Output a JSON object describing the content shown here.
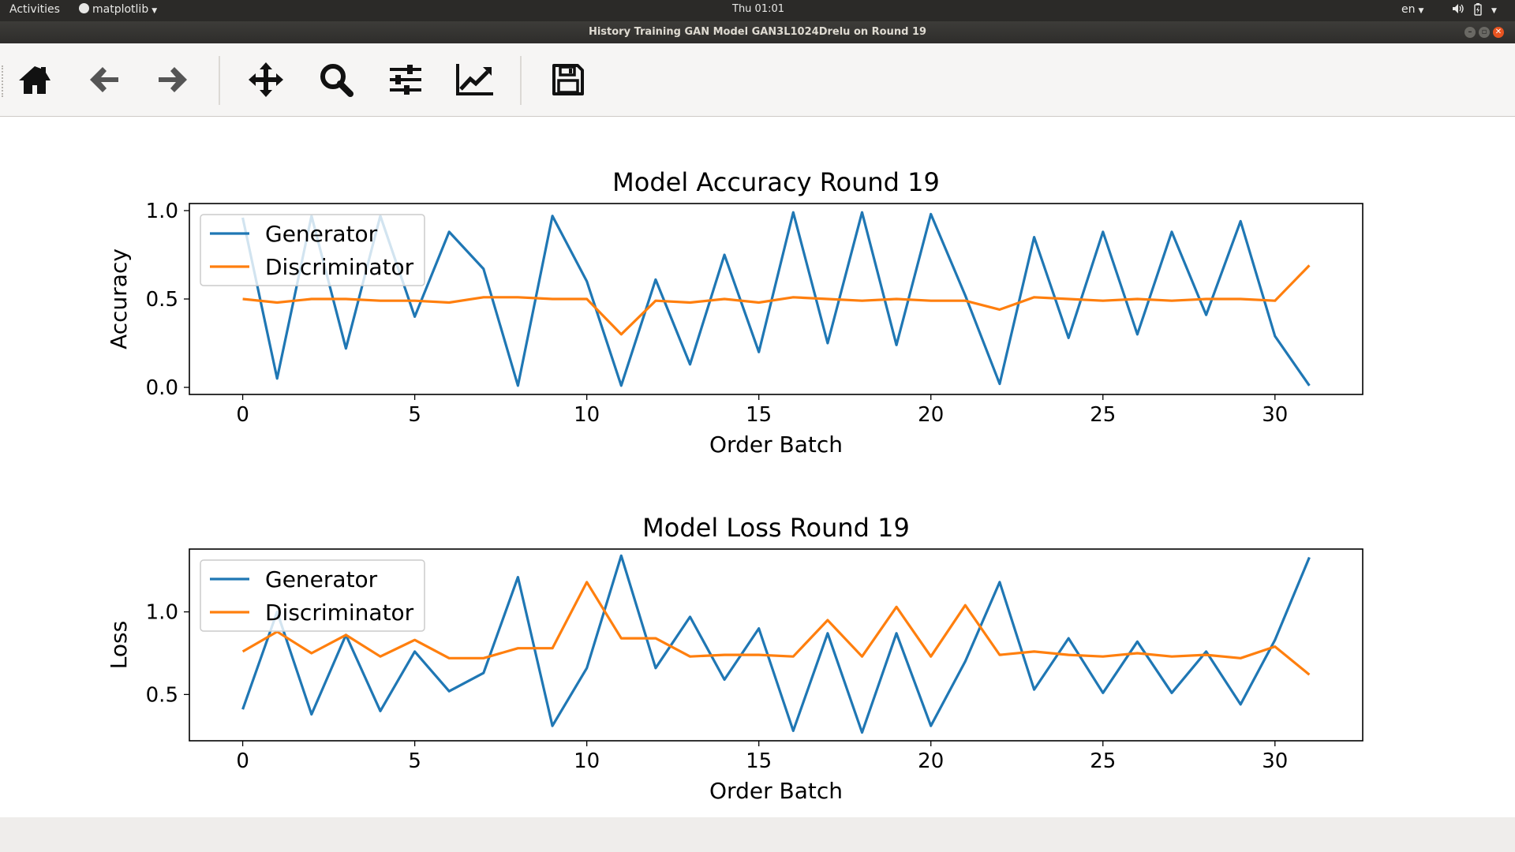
{
  "topbar": {
    "activities": "Activities",
    "app_menu": "matplotlib",
    "clock": "Thu 01:01",
    "lang": "en"
  },
  "window": {
    "title": "History Training GAN Model GAN3L1024Drelu on Round 19"
  },
  "toolbar": {
    "buttons": [
      "home-icon",
      "back-arrow-icon",
      "forward-arrow-icon",
      "pan-icon",
      "zoom-icon",
      "configure-subplots-icon",
      "edit-axis-icon",
      "save-icon"
    ]
  },
  "colors": {
    "generator": "#1f77b4",
    "discriminator": "#ff7f0e"
  },
  "chart_data": [
    {
      "type": "line",
      "title": "Model Accuracy Round 19",
      "xlabel": "Order Batch",
      "ylabel": "Accuracy",
      "xlim": [
        -1.55,
        32.55
      ],
      "ylim": [
        -0.04,
        1.04
      ],
      "xticks": [
        0,
        5,
        10,
        15,
        20,
        25,
        30
      ],
      "yticks": [
        0.0,
        0.5,
        1.0
      ],
      "ytick_labels": [
        "0.0",
        "0.5",
        "1.0"
      ],
      "legend": "upper-left",
      "x": [
        0,
        1,
        2,
        3,
        4,
        5,
        6,
        7,
        8,
        9,
        10,
        11,
        12,
        13,
        14,
        15,
        16,
        17,
        18,
        19,
        20,
        21,
        22,
        23,
        24,
        25,
        26,
        27,
        28,
        29,
        30,
        31
      ],
      "series": [
        {
          "name": "Generator",
          "values": [
            0.96,
            0.05,
            0.97,
            0.22,
            0.97,
            0.4,
            0.88,
            0.67,
            0.01,
            0.97,
            0.6,
            0.01,
            0.61,
            0.13,
            0.75,
            0.2,
            0.99,
            0.25,
            0.99,
            0.24,
            0.98,
            0.52,
            0.02,
            0.85,
            0.28,
            0.88,
            0.3,
            0.88,
            0.41,
            0.94,
            0.29,
            0.01
          ]
        },
        {
          "name": "Discriminator",
          "values": [
            0.5,
            0.48,
            0.5,
            0.5,
            0.49,
            0.49,
            0.48,
            0.51,
            0.51,
            0.5,
            0.5,
            0.3,
            0.49,
            0.48,
            0.5,
            0.48,
            0.51,
            0.5,
            0.49,
            0.5,
            0.49,
            0.49,
            0.44,
            0.51,
            0.5,
            0.49,
            0.5,
            0.49,
            0.5,
            0.5,
            0.49,
            0.69
          ]
        }
      ]
    },
    {
      "type": "line",
      "title": "Model Loss Round 19",
      "xlabel": "Order Batch",
      "ylabel": "Loss",
      "xlim": [
        -1.55,
        32.55
      ],
      "ylim": [
        0.22,
        1.38
      ],
      "xticks": [
        0,
        5,
        10,
        15,
        20,
        25,
        30
      ],
      "yticks": [
        0.5,
        1.0
      ],
      "ytick_labels": [
        "0.5",
        "1.0"
      ],
      "legend": "upper-left",
      "x": [
        0,
        1,
        2,
        3,
        4,
        5,
        6,
        7,
        8,
        9,
        10,
        11,
        12,
        13,
        14,
        15,
        16,
        17,
        18,
        19,
        20,
        21,
        22,
        23,
        24,
        25,
        26,
        27,
        28,
        29,
        30,
        31
      ],
      "series": [
        {
          "name": "Generator",
          "values": [
            0.41,
            1.0,
            0.38,
            0.86,
            0.4,
            0.76,
            0.52,
            0.63,
            1.21,
            0.31,
            0.66,
            1.34,
            0.66,
            0.97,
            0.59,
            0.9,
            0.28,
            0.87,
            0.27,
            0.87,
            0.31,
            0.7,
            1.18,
            0.53,
            0.84,
            0.51,
            0.82,
            0.51,
            0.76,
            0.44,
            0.83,
            1.33
          ]
        },
        {
          "name": "Discriminator",
          "values": [
            0.76,
            0.88,
            0.75,
            0.86,
            0.73,
            0.83,
            0.72,
            0.72,
            0.78,
            0.78,
            1.18,
            0.84,
            0.84,
            0.73,
            0.74,
            0.74,
            0.73,
            0.95,
            0.73,
            1.03,
            0.73,
            1.04,
            0.74,
            0.76,
            0.74,
            0.73,
            0.75,
            0.73,
            0.74,
            0.72,
            0.79,
            0.62
          ]
        }
      ]
    }
  ]
}
